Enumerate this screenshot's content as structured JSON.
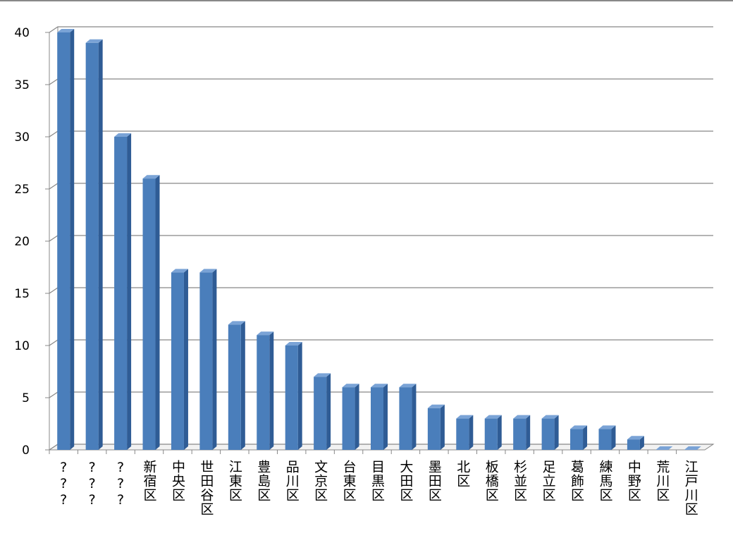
{
  "chart_data": {
    "type": "bar",
    "categories": [
      "???",
      "???",
      "???",
      "新宿区",
      "中央区",
      "世田谷区",
      "江東区",
      "豊島区",
      "品川区",
      "文京区",
      "台東区",
      "目黒区",
      "大田区",
      "墨田区",
      "北区",
      "板橋区",
      "杉並区",
      "足立区",
      "葛飾区",
      "練馬区",
      "中野区",
      "荒川区",
      "江戸川区"
    ],
    "values": [
      40,
      39,
      30,
      26,
      17,
      17,
      12,
      11,
      10,
      7,
      6,
      6,
      6,
      4,
      3,
      3,
      3,
      3,
      2,
      2,
      1,
      0,
      0
    ],
    "color": "#4a7ebb",
    "ylim": [
      0,
      40
    ],
    "yticks": [
      0,
      5,
      10,
      15,
      20,
      25,
      30,
      35,
      40
    ],
    "grid": true
  }
}
